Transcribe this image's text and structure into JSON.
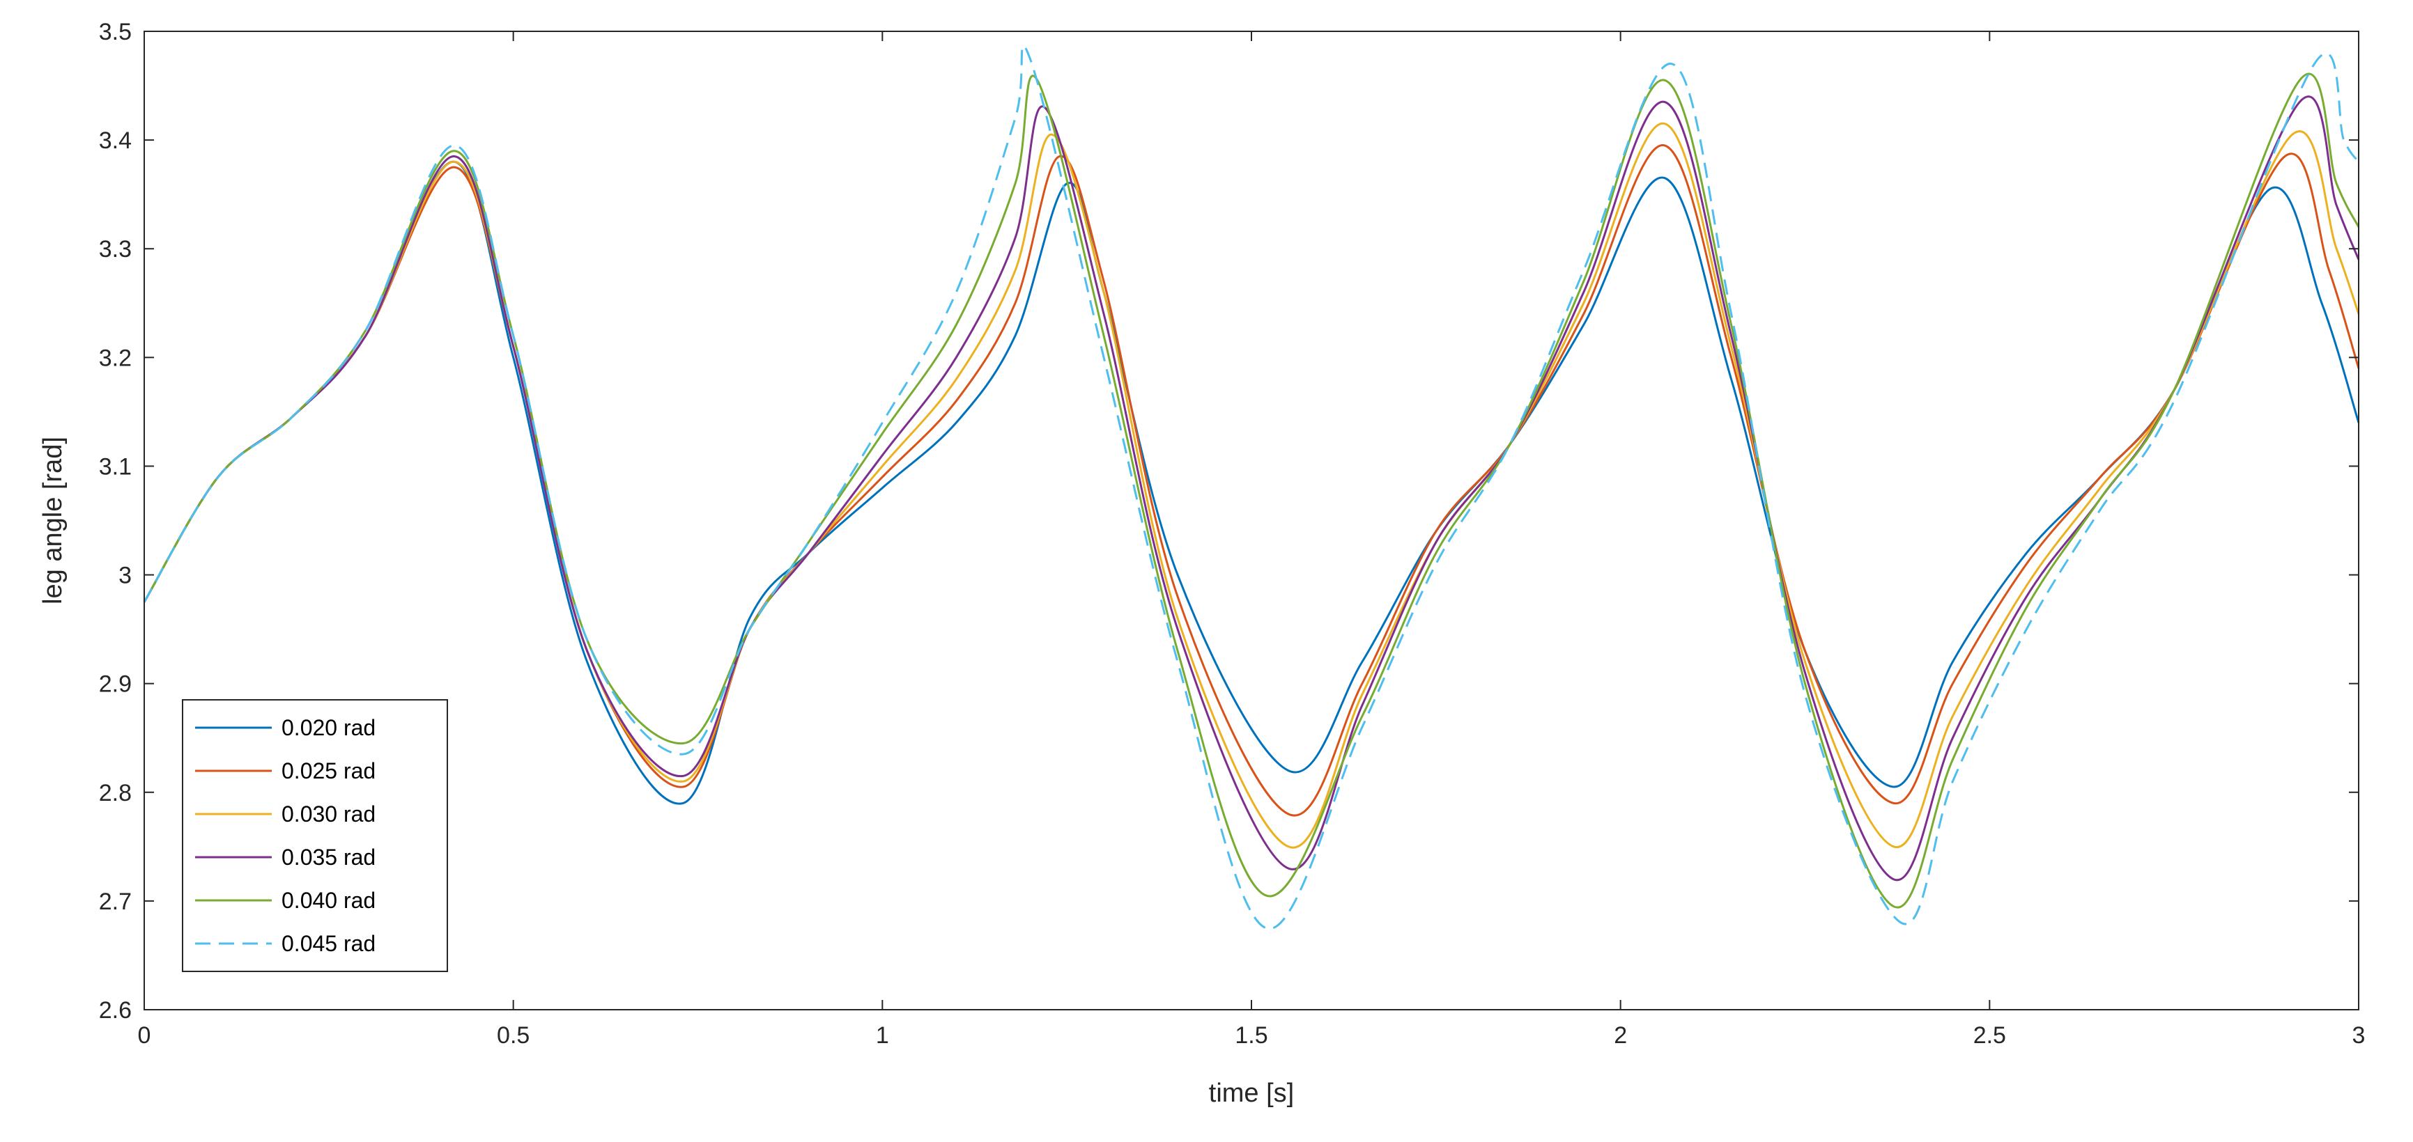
{
  "chart_data": {
    "type": "line",
    "xlabel": "time [s]",
    "ylabel": "leg angle [rad]",
    "xlim": [
      0,
      3
    ],
    "ylim": [
      2.6,
      3.5
    ],
    "xticks": [
      0,
      0.5,
      1,
      1.5,
      2,
      2.5,
      3
    ],
    "xtick_labels": [
      "0",
      "0.5",
      "1",
      "1.5",
      "2",
      "2.5",
      "3"
    ],
    "yticks": [
      2.6,
      2.7,
      2.8,
      2.9,
      3.0,
      3.1,
      3.2,
      3.3,
      3.4,
      3.5
    ],
    "ytick_labels": [
      "2.6",
      "2.7",
      "2.8",
      "2.9",
      "3",
      "3.1",
      "3.2",
      "3.3",
      "3.4",
      "3.5"
    ],
    "grid": false,
    "legend_position": "bottom-left",
    "series": [
      {
        "name": "0.020 rad",
        "color": "#0072BD",
        "dashed": false,
        "x": [
          0,
          0.1,
          0.2,
          0.3,
          0.42,
          0.5,
          0.6,
          0.73,
          0.82,
          0.9,
          1.0,
          1.1,
          1.18,
          1.25,
          1.3,
          1.4,
          1.55,
          1.65,
          1.75,
          1.85,
          1.95,
          2.06,
          2.15,
          2.25,
          2.37,
          2.45,
          2.55,
          2.65,
          2.75,
          2.88,
          2.95,
          3.0
        ],
        "y": [
          2.975,
          3.09,
          3.145,
          3.22,
          3.38,
          3.2,
          2.92,
          2.79,
          2.96,
          3.02,
          3.08,
          3.14,
          3.22,
          3.36,
          3.26,
          3.0,
          2.82,
          2.92,
          3.04,
          3.12,
          3.23,
          3.365,
          3.18,
          2.93,
          2.805,
          2.92,
          3.02,
          3.09,
          3.17,
          3.355,
          3.25,
          3.14
        ]
      },
      {
        "name": "0.025 rad",
        "color": "#D95319",
        "dashed": false,
        "x": [
          0,
          0.1,
          0.2,
          0.3,
          0.42,
          0.5,
          0.6,
          0.73,
          0.82,
          0.9,
          1.0,
          1.1,
          1.18,
          1.24,
          1.3,
          1.4,
          1.55,
          1.65,
          1.75,
          1.85,
          1.95,
          2.06,
          2.15,
          2.25,
          2.37,
          2.45,
          2.55,
          2.65,
          2.75,
          2.9,
          2.96,
          3.0
        ],
        "y": [
          2.975,
          3.09,
          3.145,
          3.22,
          3.375,
          3.21,
          2.93,
          2.805,
          2.95,
          3.02,
          3.09,
          3.16,
          3.25,
          3.385,
          3.27,
          2.98,
          2.78,
          2.9,
          3.04,
          3.12,
          3.24,
          3.395,
          3.2,
          2.93,
          2.79,
          2.9,
          3.01,
          3.09,
          3.17,
          3.385,
          3.28,
          3.19
        ]
      },
      {
        "name": "0.030 rad",
        "color": "#EDB120",
        "dashed": false,
        "x": [
          0,
          0.1,
          0.2,
          0.3,
          0.42,
          0.5,
          0.6,
          0.73,
          0.82,
          0.9,
          1.0,
          1.1,
          1.18,
          1.23,
          1.3,
          1.4,
          1.55,
          1.65,
          1.75,
          1.85,
          1.95,
          2.06,
          2.15,
          2.25,
          2.37,
          2.45,
          2.55,
          2.65,
          2.75,
          2.91,
          2.97,
          3.0
        ],
        "y": [
          2.975,
          3.09,
          3.145,
          3.22,
          3.38,
          3.21,
          2.93,
          2.81,
          2.95,
          3.02,
          3.1,
          3.18,
          3.28,
          3.405,
          3.26,
          2.96,
          2.75,
          2.89,
          3.03,
          3.12,
          3.25,
          3.415,
          3.21,
          2.92,
          2.75,
          2.87,
          2.99,
          3.08,
          3.17,
          3.405,
          3.3,
          3.24
        ]
      },
      {
        "name": "0.035 rad",
        "color": "#7E2F8E",
        "dashed": false,
        "x": [
          0,
          0.1,
          0.2,
          0.3,
          0.42,
          0.5,
          0.6,
          0.73,
          0.82,
          0.9,
          1.0,
          1.1,
          1.18,
          1.22,
          1.3,
          1.4,
          1.55,
          1.65,
          1.75,
          1.85,
          1.95,
          2.06,
          2.15,
          2.25,
          2.37,
          2.45,
          2.55,
          2.65,
          2.75,
          2.92,
          2.97,
          3.0
        ],
        "y": [
          2.975,
          3.09,
          3.145,
          3.22,
          3.385,
          3.21,
          2.93,
          2.815,
          2.95,
          3.02,
          3.11,
          3.2,
          3.31,
          3.43,
          3.24,
          2.95,
          2.73,
          2.88,
          3.03,
          3.12,
          3.26,
          3.435,
          3.22,
          2.91,
          2.72,
          2.85,
          2.98,
          3.07,
          3.17,
          3.435,
          3.34,
          3.29
        ]
      },
      {
        "name": "0.040 rad",
        "color": "#77AC30",
        "dashed": false,
        "x": [
          0,
          0.1,
          0.2,
          0.3,
          0.42,
          0.5,
          0.6,
          0.73,
          0.82,
          0.9,
          1.0,
          1.1,
          1.18,
          1.21,
          1.3,
          1.4,
          1.52,
          1.65,
          1.75,
          1.85,
          1.95,
          2.06,
          2.15,
          2.25,
          2.37,
          2.45,
          2.55,
          2.65,
          2.75,
          2.92,
          2.97,
          3.0
        ],
        "y": [
          2.975,
          3.09,
          3.145,
          3.225,
          3.39,
          3.22,
          2.94,
          2.845,
          2.95,
          3.03,
          3.13,
          3.23,
          3.36,
          3.455,
          3.22,
          2.93,
          2.705,
          2.87,
          3.02,
          3.12,
          3.27,
          3.455,
          3.23,
          2.9,
          2.695,
          2.83,
          2.97,
          3.07,
          3.17,
          3.455,
          3.36,
          3.32
        ]
      },
      {
        "name": "0.045 rad",
        "color": "#4DBEEE",
        "dashed": true,
        "x": [
          0,
          0.1,
          0.2,
          0.3,
          0.42,
          0.5,
          0.6,
          0.73,
          0.82,
          0.9,
          1.0,
          1.1,
          1.18,
          1.2,
          1.3,
          1.4,
          1.52,
          1.65,
          1.75,
          1.85,
          1.95,
          2.07,
          2.15,
          2.25,
          2.38,
          2.45,
          2.55,
          2.65,
          2.75,
          2.94,
          2.98,
          3.0
        ],
        "y": [
          2.975,
          3.09,
          3.145,
          3.225,
          3.395,
          3.22,
          2.94,
          2.835,
          2.95,
          3.03,
          3.14,
          3.26,
          3.42,
          3.475,
          3.2,
          2.92,
          2.675,
          2.86,
          3.01,
          3.12,
          3.28,
          3.47,
          3.24,
          2.89,
          2.68,
          2.81,
          2.95,
          3.06,
          3.16,
          3.47,
          3.4,
          3.38
        ]
      }
    ]
  }
}
